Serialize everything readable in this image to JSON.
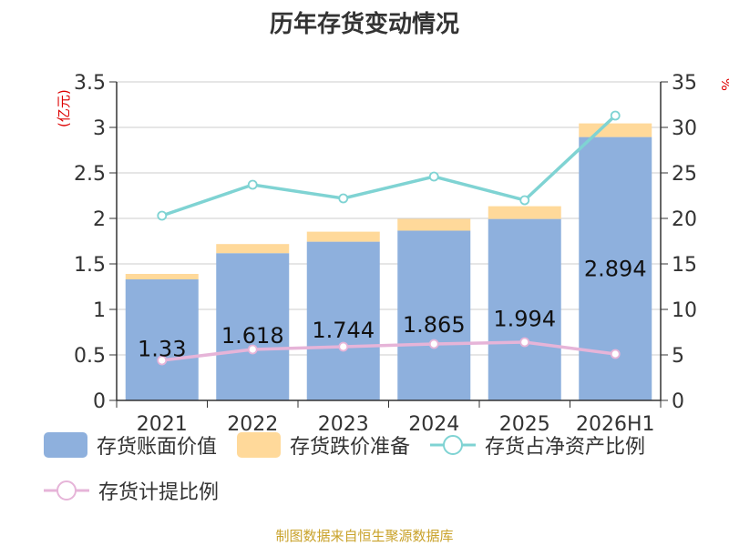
{
  "colors": {
    "bar_book": "#8eb0dd",
    "bar_provision": "#ffd99a",
    "line_ratio_net": "#7fd3d3",
    "line_ratio_provision": "#e6b4d8",
    "unit_label": "#dd0000",
    "source": "#c9a22a"
  },
  "chart_data": {
    "type": "bar",
    "title": "历年存货变动情况",
    "left_axis": {
      "unit_label": "(亿元)",
      "ylim": [
        0,
        3.5
      ],
      "ticks": [
        "0",
        "0.5",
        "1",
        "1.5",
        "2",
        "2.5",
        "3",
        "3.5"
      ]
    },
    "right_axis": {
      "unit_label": "%",
      "ylim": [
        0,
        35
      ],
      "ticks": [
        "0",
        "5",
        "10",
        "15",
        "20",
        "25",
        "30",
        "35"
      ]
    },
    "grid": true,
    "categories": [
      "2021",
      "2022",
      "2023",
      "2024",
      "2025",
      "2026H1"
    ],
    "series": [
      {
        "name": "存货账面价值",
        "kind": "bar",
        "axis": "left",
        "values": [
          1.33,
          1.618,
          1.744,
          1.865,
          1.994,
          2.894
        ],
        "labels": [
          "1.33",
          "1.618",
          "1.744",
          "1.865",
          "1.994",
          "2.894"
        ]
      },
      {
        "name": "存货跌价准备",
        "kind": "bar-stack",
        "axis": "left",
        "values": [
          0.06,
          0.1,
          0.11,
          0.13,
          0.14,
          0.15
        ]
      },
      {
        "name": "存货占净资产比例",
        "kind": "line",
        "axis": "right",
        "values": [
          20.3,
          23.7,
          22.2,
          24.6,
          22.0,
          31.3
        ]
      },
      {
        "name": "存货计提比例",
        "kind": "line",
        "axis": "right",
        "values": [
          4.4,
          5.6,
          5.9,
          6.2,
          6.4,
          5.1
        ]
      }
    ],
    "legend_position": "bottom"
  },
  "source_note": "制图数据来自恒生聚源数据库"
}
